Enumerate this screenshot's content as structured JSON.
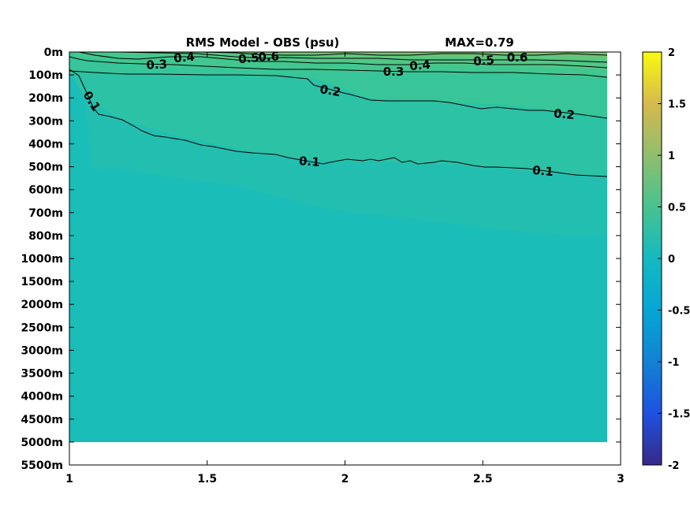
{
  "chart_data": {
    "type": "heatmap",
    "title": "RMS Model - OBS (psu)",
    "max_label": "MAX=0.79",
    "xlim": [
      1,
      3
    ],
    "x_ticks": [
      "1",
      "1.5",
      "2",
      "2.5",
      "3"
    ],
    "y_ticks": [
      "0m",
      "100m",
      "200m",
      "300m",
      "400m",
      "500m",
      "600m",
      "700m",
      "800m",
      "1000m",
      "1500m",
      "2000m",
      "2500m",
      "3000m",
      "3500m",
      "4000m",
      "4500m",
      "5000m",
      "5500m"
    ],
    "colorbar": {
      "colormap": "parula",
      "range": [
        -2,
        2
      ],
      "ticks": [
        "2",
        "1.5",
        "1",
        "0.5",
        "0",
        "-0.5",
        "-1",
        "-1.5",
        "-2"
      ]
    },
    "data_x_range": [
      1,
      2.95
    ],
    "data_depth_bottom": "5000m",
    "contours": [
      {
        "level": 0.1,
        "labels": [
          "0.1",
          "0.1",
          "0.1"
        ],
        "points": [
          [
            1.0,
            0.8
          ],
          [
            1.1,
            2.3
          ],
          [
            1.3,
            3.4
          ],
          [
            1.5,
            3.9
          ],
          [
            1.7,
            4.4
          ],
          [
            1.9,
            4.8
          ],
          [
            2.1,
            4.85
          ],
          [
            2.3,
            4.9
          ],
          [
            2.5,
            5.0
          ],
          [
            2.7,
            5.1
          ],
          [
            2.95,
            5.45
          ]
        ]
      },
      {
        "level": 0.2,
        "labels": [
          "0.2",
          "0.2"
        ],
        "points": [
          [
            1.0,
            0.9
          ],
          [
            1.3,
            0.95
          ],
          [
            1.6,
            0.98
          ],
          [
            1.8,
            1.1
          ],
          [
            2.0,
            1.4
          ],
          [
            2.2,
            2.1
          ],
          [
            2.5,
            2.5
          ],
          [
            2.7,
            2.6
          ],
          [
            2.95,
            2.9
          ]
        ]
      },
      {
        "level": 0.3,
        "labels": [
          "0.3",
          "0.3"
        ],
        "points": [
          [
            1.05,
            0.35
          ],
          [
            1.3,
            0.6
          ],
          [
            1.6,
            0.7
          ],
          [
            2.0,
            0.8
          ],
          [
            2.3,
            0.85
          ],
          [
            2.6,
            0.9
          ],
          [
            2.95,
            1.2
          ]
        ]
      },
      {
        "level": 0.4,
        "labels": [
          "0.4",
          "0.4"
        ],
        "points": [
          [
            1.1,
            0.2
          ],
          [
            1.4,
            0.3
          ],
          [
            1.7,
            0.45
          ],
          [
            2.0,
            0.6
          ],
          [
            2.3,
            0.65
          ],
          [
            2.6,
            0.7
          ],
          [
            2.95,
            0.8
          ]
        ]
      },
      {
        "level": 0.5,
        "labels": [
          "0.5",
          "0.5"
        ],
        "points": [
          [
            1.3,
            0.05
          ],
          [
            1.6,
            0.2
          ],
          [
            1.9,
            0.3
          ],
          [
            2.2,
            0.35
          ],
          [
            2.5,
            0.35
          ],
          [
            2.95,
            0.5
          ]
        ]
      },
      {
        "level": 0.6,
        "labels": [
          "0.6",
          "0.6"
        ],
        "points": [
          [
            1.5,
            0.05
          ],
          [
            1.8,
            0.15
          ],
          [
            2.1,
            0.2
          ],
          [
            2.4,
            0.2
          ],
          [
            2.7,
            0.2
          ],
          [
            2.95,
            0.3
          ]
        ]
      }
    ]
  }
}
